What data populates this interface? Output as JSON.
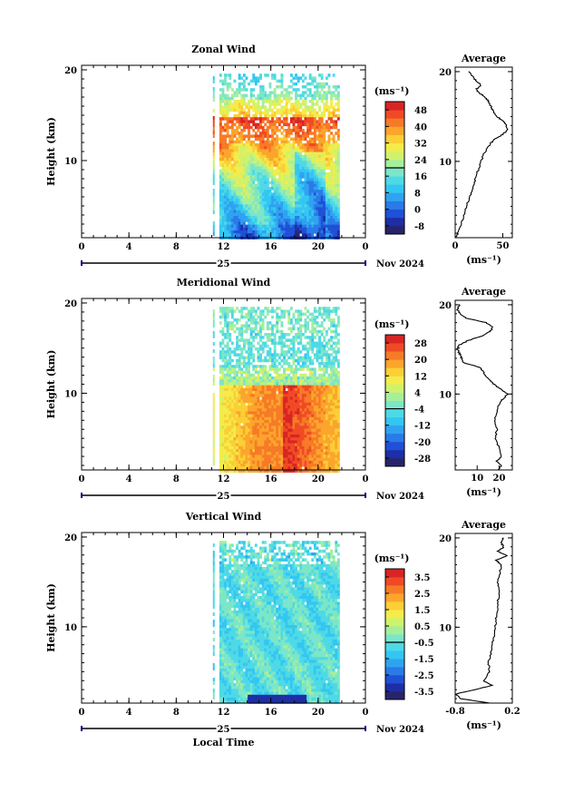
{
  "figure": {
    "xlabel": "Local Time",
    "date_label": "Nov 2024",
    "day_label": "25",
    "unit_label": "(ms⁻¹)",
    "profile_title": "Average"
  },
  "chart_data": [
    {
      "type": "heatmap",
      "title": "Zonal Wind",
      "xlabel": "Local Time",
      "ylabel": "Height (km)",
      "x_ticks": [
        "0",
        "4",
        "8",
        "12",
        "16",
        "20",
        "0"
      ],
      "y_ticks": [
        "10",
        "20"
      ],
      "xlim": [
        0,
        24
      ],
      "ylim": [
        1.5,
        20.5
      ],
      "data_coverage_hours": [
        11.7,
        21.8
      ],
      "colorbar": {
        "title": "(ms⁻¹)",
        "ticks": [
          "48",
          "40",
          "32",
          "24",
          "16",
          "8",
          "0",
          "-8"
        ],
        "range": [
          -12,
          52
        ]
      },
      "profile": {
        "title": "Average",
        "xlabel": "(ms⁻¹)",
        "x_ticks": [
          "0",
          "50"
        ],
        "xlim": [
          0,
          60
        ],
        "heights": [
          1.5,
          2,
          3,
          4,
          5,
          6,
          7,
          8,
          9,
          10,
          11,
          12,
          12.5,
          13,
          13.5,
          14,
          14.5,
          15,
          15.5,
          16,
          16.5,
          17,
          17.5,
          18,
          18.5,
          19,
          19.5,
          20
        ],
        "values": [
          0,
          3,
          6,
          9,
          12,
          15,
          18,
          21,
          24,
          27,
          31,
          37,
          42,
          50,
          55,
          54,
          50,
          44,
          40,
          38,
          36,
          33,
          27,
          22,
          27,
          22,
          18,
          14
        ]
      }
    },
    {
      "type": "heatmap",
      "title": "Meridional Wind",
      "xlabel": "Local Time",
      "ylabel": "Height (km)",
      "x_ticks": [
        "0",
        "4",
        "8",
        "12",
        "16",
        "20",
        "0"
      ],
      "y_ticks": [
        "10",
        "20"
      ],
      "xlim": [
        0,
        24
      ],
      "ylim": [
        1.5,
        20.5
      ],
      "data_coverage_hours": [
        11.7,
        21.8
      ],
      "colorbar": {
        "title": "(ms⁻¹)",
        "ticks": [
          "28",
          "20",
          "12",
          "4",
          "-4",
          "-12",
          "-20",
          "-28"
        ],
        "range": [
          -32,
          32
        ]
      },
      "profile": {
        "title": "Average",
        "xlabel": "(ms⁻¹)",
        "x_ticks": [
          "10",
          "20"
        ],
        "xlim": [
          0,
          26
        ],
        "heights": [
          1.5,
          2,
          2.5,
          3,
          4,
          5,
          6,
          7,
          8,
          9,
          9.5,
          10,
          10.5,
          11,
          11.5,
          12,
          12.5,
          13,
          13.5,
          14,
          14.5,
          15,
          15.5,
          16,
          16.5,
          17,
          17.5,
          18,
          18.5,
          19,
          19.5,
          20
        ],
        "values": [
          20,
          21,
          19,
          21,
          20,
          18,
          19,
          18,
          19,
          20,
          22,
          24,
          21,
          18,
          16,
          14,
          13,
          11,
          4,
          3,
          2,
          1,
          2,
          6,
          12,
          16,
          17,
          14,
          5,
          2,
          1,
          2
        ]
      }
    },
    {
      "type": "heatmap",
      "title": "Vertical Wind",
      "xlabel": "Local Time",
      "ylabel": "Height (km)",
      "x_ticks": [
        "0",
        "4",
        "8",
        "12",
        "16",
        "20",
        "0"
      ],
      "y_ticks": [
        "10",
        "20"
      ],
      "xlim": [
        0,
        24
      ],
      "ylim": [
        1.5,
        20.5
      ],
      "data_coverage_hours": [
        11.7,
        21.8
      ],
      "colorbar": {
        "title": "(ms⁻¹)",
        "ticks": [
          "3.5",
          "2.5",
          "1.5",
          "0.5",
          "-0.5",
          "-1.5",
          "-2.5",
          "-3.5"
        ],
        "range": [
          -4,
          4
        ]
      },
      "profile": {
        "title": "Average",
        "xlabel": "(ms⁻¹)",
        "x_ticks": [
          "-0.8",
          "0.2"
        ],
        "xlim": [
          -0.8,
          0.2
        ],
        "heights": [
          1.5,
          2,
          2.5,
          3,
          3.5,
          4,
          5,
          6,
          7,
          8,
          9,
          10,
          11,
          12,
          13,
          14,
          15,
          16,
          17,
          17.5,
          18,
          18.5,
          19,
          19.5,
          20
        ],
        "values": [
          -0.2,
          -0.7,
          -0.8,
          -0.45,
          -0.15,
          -0.3,
          -0.2,
          -0.22,
          -0.18,
          -0.15,
          -0.12,
          -0.1,
          -0.08,
          -0.06,
          -0.05,
          -0.02,
          -0.06,
          -0.02,
          0.0,
          -0.08,
          0.1,
          -0.05,
          0.05,
          0.0,
          0.05
        ]
      }
    }
  ]
}
